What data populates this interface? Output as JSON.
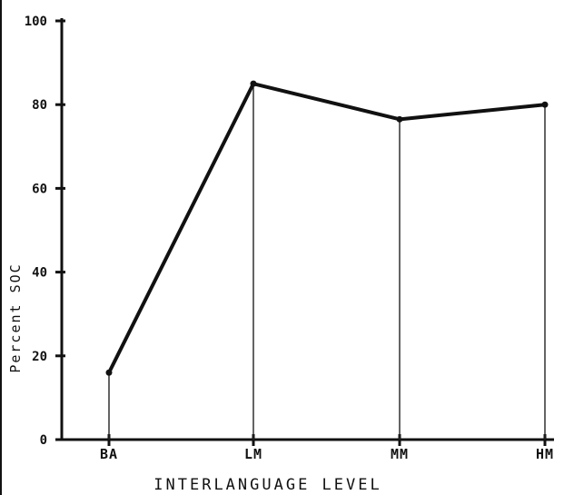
{
  "chart_data": {
    "type": "line",
    "categories": [
      "BA",
      "LM",
      "MM",
      "HM"
    ],
    "series": [
      {
        "values": [
          16,
          85,
          76.5,
          80
        ]
      }
    ],
    "xlabel": "INTERLANGUAGE LEVEL",
    "ylabel": "Percent SOC",
    "ylim": [
      0,
      100
    ],
    "yticks": [
      "0",
      "20",
      "40",
      "60",
      "80",
      "100"
    ],
    "grid": false,
    "drop_lines": true,
    "colors": {
      "line": "#111111",
      "background": "#ffffff"
    }
  }
}
